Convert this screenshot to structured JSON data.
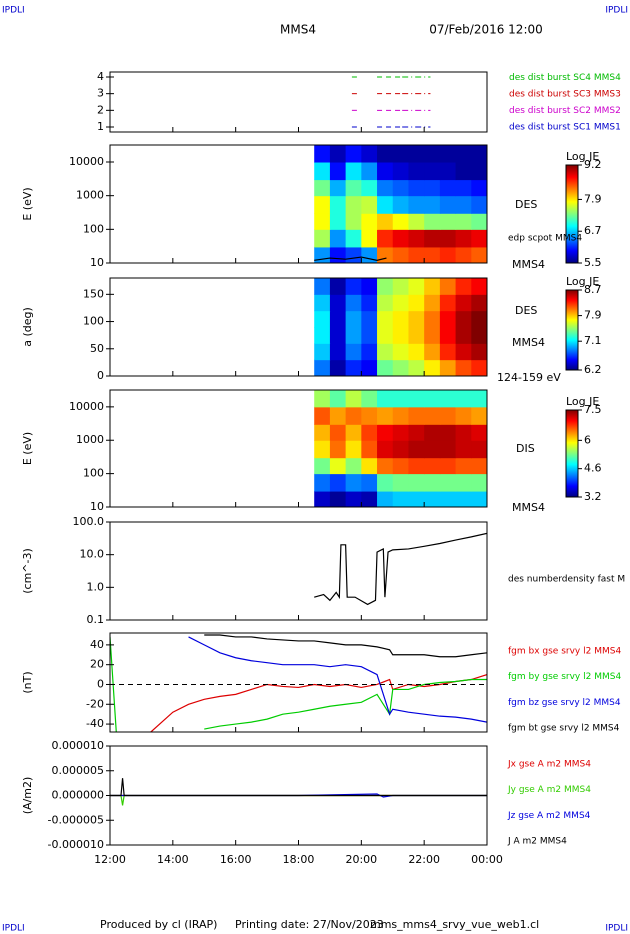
{
  "header": {
    "left": "IPDLI",
    "right": "IPDLI",
    "title": "MMS4",
    "date": "07/Feb/2016 12:00"
  },
  "footer": {
    "producer": "Produced by cl (IRAP)",
    "printed": "Printing date: 27/Nov/2023",
    "file": "mms_mms4_srvy_vue_web1.cl",
    "left": "IPDLI",
    "right": "IPDLI"
  },
  "chart_data": [
    {
      "type": "timeline",
      "ylim": [
        0.7,
        4.3
      ],
      "yticks": [
        1,
        2,
        3,
        4
      ],
      "series": [
        {
          "name": "des dist burst SC1 MMS1",
          "color": "#0000cc",
          "level": 1,
          "intervals": [
            [
              19.7,
              19.9
            ],
            [
              20.5,
              21.3
            ],
            [
              21.3,
              22.2
            ]
          ]
        },
        {
          "name": "des dist burst SC2 MMS2",
          "color": "#cc00cc",
          "level": 2,
          "intervals": [
            [
              19.7,
              19.9
            ],
            [
              20.5,
              21.3
            ],
            [
              21.3,
              22.2
            ]
          ]
        },
        {
          "name": "des dist burst SC3 MMS3",
          "color": "#cc0000",
          "level": 3,
          "intervals": [
            [
              19.7,
              19.9
            ],
            [
              20.5,
              21.3
            ],
            [
              21.3,
              22.2
            ]
          ]
        },
        {
          "name": "des dist burst SC4 MMS4",
          "color": "#00bb00",
          "level": 4,
          "intervals": [
            [
              19.7,
              19.9
            ],
            [
              20.5,
              21.3
            ],
            [
              21.3,
              22.2
            ]
          ]
        }
      ]
    },
    {
      "type": "heatmap",
      "ylabel": "E (eV)",
      "log": true,
      "ylim": [
        10,
        32000
      ],
      "yticks": [
        10,
        100,
        1000,
        10000
      ],
      "labels": [
        "DES",
        "MMS4"
      ],
      "colorbar_label": "Log JE",
      "clim": [
        5.5,
        9.2
      ],
      "cticks": [
        5.5,
        6.7,
        7.9,
        9.2
      ],
      "xbins": [
        18.5,
        19,
        19.5,
        20,
        20.5,
        21,
        21.5,
        22,
        22.5,
        23,
        23.5,
        24
      ],
      "ybins": [
        10,
        30,
        100,
        300,
        1000,
        3000,
        10000,
        32000
      ],
      "z": [
        [
          6.5,
          6.0,
          6.2,
          6.5,
          8.3,
          8.4,
          8.5,
          8.5,
          8.6,
          8.5,
          8.4
        ],
        [
          7.5,
          6.5,
          7.0,
          7.8,
          8.6,
          8.8,
          8.9,
          9.0,
          9.0,
          8.9,
          8.8
        ],
        [
          7.8,
          7.0,
          7.5,
          7.8,
          8.0,
          7.8,
          7.6,
          7.4,
          7.4,
          7.4,
          7.3
        ],
        [
          7.8,
          7.0,
          7.5,
          7.6,
          6.8,
          6.6,
          6.5,
          6.5,
          6.4,
          6.4,
          6.3
        ],
        [
          7.3,
          6.6,
          7.2,
          7.0,
          6.4,
          6.3,
          6.2,
          6.2,
          6.1,
          6.1,
          6.0
        ],
        [
          6.8,
          6.0,
          6.8,
          6.5,
          5.9,
          5.8,
          5.7,
          5.7,
          5.7,
          5.6,
          5.6
        ],
        [
          6.0,
          5.7,
          6.0,
          5.8,
          5.6,
          5.6,
          5.6,
          5.6,
          5.6,
          5.6,
          5.6
        ]
      ],
      "series": [
        {
          "name": "edp scpot MMS4",
          "color": "#000000",
          "x": [
            18.5,
            19,
            19.5,
            20,
            20.5,
            20.8
          ],
          "values": [
            12,
            14,
            13,
            15,
            12,
            14
          ]
        }
      ]
    },
    {
      "type": "heatmap",
      "ylabel": "a (deg)",
      "log": false,
      "ylim": [
        0,
        180
      ],
      "yticks": [
        0,
        50,
        100,
        150
      ],
      "labels": [
        "DES",
        "MMS4",
        "124-159 eV"
      ],
      "colorbar_label": "Log JE",
      "clim": [
        6.2,
        8.7
      ],
      "cticks": [
        6.2,
        7.1,
        7.9,
        8.7
      ],
      "xbins": [
        18.5,
        19,
        19.5,
        20,
        20.5,
        21,
        21.5,
        22,
        22.5,
        23,
        23.5,
        24
      ],
      "ybins": [
        0,
        30,
        60,
        90,
        120,
        150,
        180
      ],
      "z": [
        [
          6.8,
          6.3,
          6.6,
          6.5,
          7.4,
          7.5,
          7.6,
          7.8,
          8.0,
          8.2,
          8.3
        ],
        [
          7.0,
          6.4,
          6.8,
          6.6,
          7.6,
          7.7,
          7.8,
          8.0,
          8.3,
          8.5,
          8.6
        ],
        [
          7.1,
          6.4,
          6.9,
          6.7,
          7.7,
          7.8,
          7.9,
          8.1,
          8.4,
          8.6,
          8.7
        ],
        [
          7.1,
          6.4,
          6.9,
          6.7,
          7.7,
          7.8,
          7.9,
          8.1,
          8.4,
          8.6,
          8.7
        ],
        [
          7.0,
          6.4,
          6.8,
          6.6,
          7.6,
          7.7,
          7.8,
          8.0,
          8.3,
          8.5,
          8.6
        ],
        [
          6.8,
          6.3,
          6.6,
          6.5,
          7.5,
          7.6,
          7.7,
          7.9,
          8.1,
          8.3,
          8.4
        ]
      ]
    },
    {
      "type": "heatmap",
      "ylabel": "E (eV)",
      "log": true,
      "ylim": [
        10,
        32000
      ],
      "yticks": [
        10,
        100,
        1000,
        10000
      ],
      "labels": [
        "DIS",
        "MMS4"
      ],
      "colorbar_label": "Log JE",
      "clim": [
        3.2,
        7.5
      ],
      "cticks": [
        3.2,
        4.6,
        6.0,
        7.5
      ],
      "xbins": [
        18.5,
        19,
        19.5,
        20,
        20.5,
        21,
        21.5,
        22,
        22.5,
        23,
        23.5,
        24
      ],
      "ybins": [
        10,
        30,
        100,
        300,
        1000,
        3000,
        10000,
        32000
      ],
      "z": [
        [
          3.5,
          3.3,
          3.5,
          3.4,
          4.5,
          4.6,
          4.6,
          4.6,
          4.6,
          4.6,
          4.6
        ],
        [
          4.2,
          4.0,
          4.3,
          4.2,
          5.2,
          5.3,
          5.3,
          5.3,
          5.3,
          5.3,
          5.3
        ],
        [
          5.3,
          5.8,
          5.4,
          6.0,
          6.5,
          6.6,
          6.7,
          6.7,
          6.7,
          6.6,
          6.6
        ],
        [
          6.0,
          6.5,
          6.0,
          6.6,
          7.1,
          7.2,
          7.3,
          7.3,
          7.3,
          7.2,
          7.2
        ],
        [
          6.2,
          6.6,
          6.2,
          6.7,
          7.0,
          7.1,
          7.2,
          7.3,
          7.3,
          7.2,
          7.1
        ],
        [
          6.6,
          6.3,
          6.5,
          6.4,
          6.3,
          6.4,
          6.5,
          6.5,
          6.5,
          6.4,
          6.3
        ],
        [
          5.5,
          5.2,
          5.6,
          5.3,
          5.0,
          5.0,
          5.0,
          5.0,
          5.0,
          5.0,
          5.0
        ]
      ]
    },
    {
      "type": "line",
      "ylabel": "(cm^-3)",
      "log": true,
      "ylim": [
        0.1,
        100
      ],
      "yticks": [
        0.1,
        {
          "value": 1,
          "label": "1.0"
        },
        {
          "value": 10,
          "label": "10.0"
        },
        {
          "value": 100,
          "label": "100.0"
        }
      ],
      "x": [
        18.5,
        18.8,
        19.0,
        19.2,
        19.3,
        19.35,
        19.5,
        19.55,
        19.8,
        20.2,
        20.45,
        20.5,
        20.7,
        20.75,
        20.85,
        21,
        21.5,
        22,
        22.5,
        23,
        23.5,
        24
      ],
      "series": [
        {
          "name": "des numberdensity fast M",
          "color": "#000000",
          "values": [
            0.5,
            0.6,
            0.4,
            0.7,
            0.5,
            20,
            20,
            0.5,
            0.5,
            0.3,
            0.4,
            12,
            15,
            0.5,
            12,
            14,
            15,
            18,
            22,
            28,
            35,
            45
          ]
        }
      ]
    },
    {
      "type": "line",
      "ylabel": "(nT)",
      "log": false,
      "ylim": [
        -48,
        52
      ],
      "yticks": [
        -40,
        -20,
        0,
        20,
        40
      ],
      "zero_line": true,
      "x": [
        12,
        12.1,
        12.2,
        13,
        13.3,
        14,
        14.5,
        15,
        15.5,
        16,
        16.5,
        17,
        17.5,
        18,
        18.5,
        19,
        19.5,
        20,
        20.5,
        20.9,
        21,
        21.5,
        22,
        22.5,
        23,
        23.5,
        24
      ],
      "series": [
        {
          "name": "fgm bx gse srvy l2 MMS4",
          "color": "#dd0000",
          "values": [
            null,
            null,
            null,
            null,
            -48,
            -28,
            -20,
            -15,
            -12,
            -10,
            -5,
            0,
            -2,
            -3,
            0,
            -2,
            0,
            -3,
            0,
            5,
            -5,
            0,
            -2,
            0,
            3,
            5,
            10
          ]
        },
        {
          "name": "fgm by gse srvy l2 MMS4",
          "color": "#00cc00",
          "values": [
            48,
            0,
            -48,
            null,
            null,
            null,
            null,
            -45,
            -42,
            -40,
            -38,
            -35,
            -30,
            -28,
            -25,
            -22,
            -20,
            -18,
            -10,
            -30,
            -5,
            -5,
            0,
            2,
            3,
            5,
            5
          ]
        },
        {
          "name": "fgm bz gse srvy l2 MMS4",
          "color": "#0000dd",
          "values": [
            null,
            null,
            null,
            null,
            null,
            null,
            48,
            40,
            32,
            27,
            24,
            22,
            20,
            20,
            20,
            18,
            20,
            18,
            10,
            -30,
            -25,
            -28,
            -30,
            -32,
            -33,
            -35,
            -38
          ]
        },
        {
          "name": "fgm bt gse srvy l2 MMS4",
          "color": "#000000",
          "values": [
            null,
            null,
            null,
            null,
            null,
            null,
            null,
            50,
            50,
            48,
            48,
            46,
            45,
            44,
            44,
            42,
            40,
            40,
            38,
            35,
            30,
            30,
            30,
            28,
            28,
            30,
            32
          ]
        }
      ]
    },
    {
      "type": "line",
      "ylabel": "(A/m2)",
      "log": false,
      "ylim": [
        -1e-05,
        1e-05
      ],
      "yticks": [
        {
          "value": -1e-05,
          "label": "-0.000010"
        },
        {
          "value": -5e-06,
          "label": "-0.000005"
        },
        {
          "value": 0,
          "label": "0.000000"
        },
        {
          "value": 5e-06,
          "label": "0.000005"
        },
        {
          "value": 1e-05,
          "label": "0.000010"
        }
      ],
      "xlim": [
        12,
        24
      ],
      "xticks": [
        {
          "value": 12,
          "label": "12:00"
        },
        {
          "value": 14,
          "label": "14:00"
        },
        {
          "value": 16,
          "label": "16:00"
        },
        {
          "value": 18,
          "label": "18:00"
        },
        {
          "value": 20,
          "label": "20:00"
        },
        {
          "value": 22,
          "label": "22:00"
        },
        {
          "value": 24,
          "label": "00:00"
        }
      ],
      "x": [
        12,
        12.35,
        12.4,
        12.45,
        12.5,
        13,
        18,
        20.5,
        20.7,
        21,
        22,
        24
      ],
      "series": [
        {
          "name": "Jx gse A m2 MMS4",
          "color": "#dd0000",
          "values": [
            0,
            0,
            0,
            0,
            0,
            0,
            0,
            0,
            0,
            0,
            0,
            0
          ]
        },
        {
          "name": "Jy gse A m2 MMS4",
          "color": "#33cc00",
          "values": [
            0,
            0,
            -2e-06,
            0,
            0,
            0,
            0,
            0,
            0,
            0,
            0,
            0
          ]
        },
        {
          "name": "Jz gse A m2 MMS4",
          "color": "#0000dd",
          "values": [
            0,
            0,
            0,
            0,
            0,
            0,
            0,
            3e-07,
            -3e-07,
            0,
            0,
            0
          ]
        },
        {
          "name": "J A m2 MMS4",
          "color": "#000000",
          "values": [
            0,
            0,
            3.5e-06,
            0,
            0,
            0,
            0,
            0,
            0,
            0,
            0,
            0
          ]
        }
      ]
    }
  ]
}
